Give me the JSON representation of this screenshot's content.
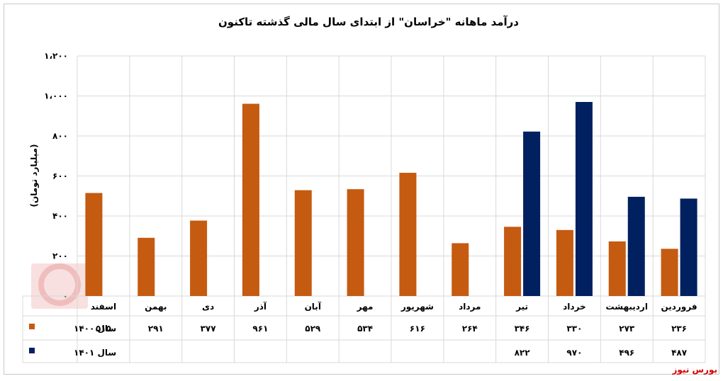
{
  "chart_data": {
    "type": "bar",
    "title": "درآمد ماهانه \"خراسان\" از ابتدای سال مالی گذشته تاکنون",
    "ylabel": "(میلیارد تومان)",
    "ylim": [
      0,
      1200
    ],
    "yticks": [
      0,
      200,
      400,
      600,
      800,
      1000,
      1200
    ],
    "ytick_labels": [
      "۰",
      "۲۰۰",
      "۴۰۰",
      "۶۰۰",
      "۸۰۰",
      "۱،۰۰۰",
      "۱،۲۰۰"
    ],
    "grid": true,
    "legend": "data-table-left",
    "categories": [
      "فروردین",
      "اردیبهشت",
      "خرداد",
      "تیر",
      "مرداد",
      "شهریور",
      "مهر",
      "آبان",
      "آذر",
      "دی",
      "بهمن",
      "اسفند"
    ],
    "series": [
      {
        "name": "سال ۱۴۰۰",
        "color": "#c55a11",
        "values": [
          236,
          273,
          330,
          346,
          264,
          616,
          534,
          529,
          961,
          377,
          291,
          515
        ],
        "labels": [
          "۲۳۶",
          "۲۷۳",
          "۳۳۰",
          "۳۴۶",
          "۲۶۴",
          "۶۱۶",
          "۵۳۴",
          "۵۲۹",
          "۹۶۱",
          "۳۷۷",
          "۲۹۱",
          "۵۱۵"
        ]
      },
      {
        "name": "سال ۱۴۰۱",
        "color": "#002060",
        "values": [
          487,
          496,
          970,
          822,
          null,
          null,
          null,
          null,
          null,
          null,
          null,
          null
        ],
        "labels": [
          "۴۸۷",
          "۴۹۶",
          "۹۷۰",
          "۸۲۲",
          "",
          "",
          "",
          "",
          "",
          "",
          "",
          ""
        ]
      }
    ]
  },
  "footer": {
    "source": "بورس نیوز",
    "watermark": "بورس نیوز"
  }
}
